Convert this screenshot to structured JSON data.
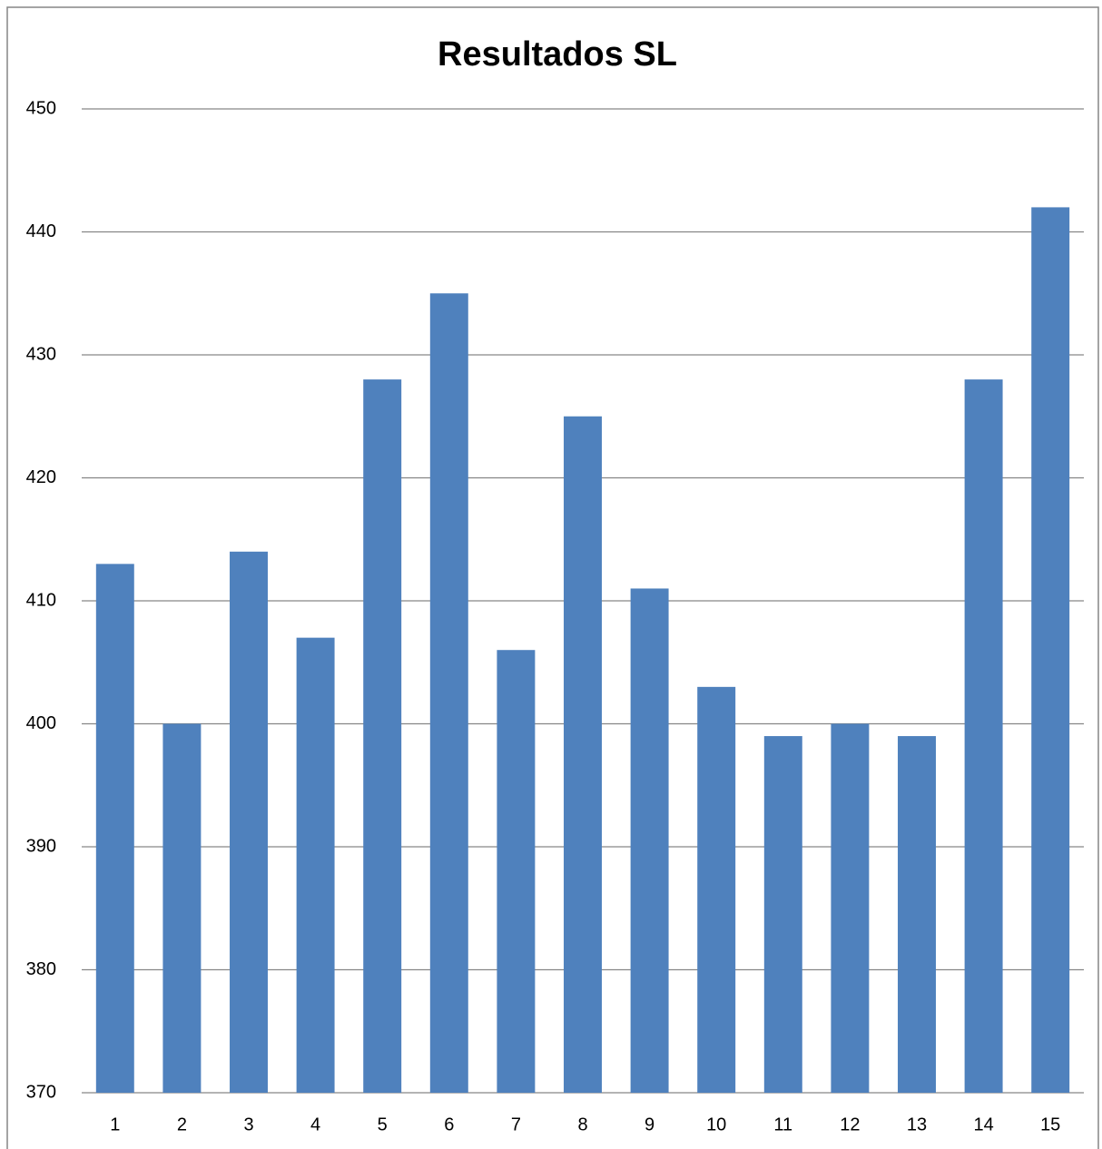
{
  "chart_data": {
    "type": "bar",
    "title": "Resultados SL",
    "categories": [
      "1",
      "2",
      "3",
      "4",
      "5",
      "6",
      "7",
      "8",
      "9",
      "10",
      "11",
      "12",
      "13",
      "14",
      "15"
    ],
    "values": [
      413,
      400,
      414,
      407,
      428,
      435,
      406,
      425,
      411,
      403,
      399,
      400,
      399,
      428,
      442
    ],
    "color": "#4f81bd",
    "ylim": [
      370,
      450
    ],
    "yticks": [
      370,
      380,
      390,
      400,
      410,
      420,
      430,
      440,
      450
    ],
    "grid": true
  }
}
